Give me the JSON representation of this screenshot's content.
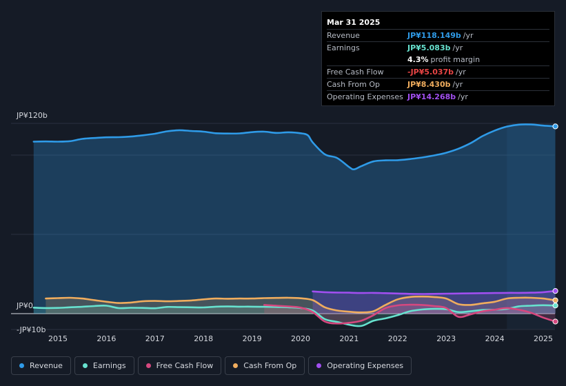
{
  "tooltip": {
    "date": "Mar 31 2025",
    "rows": [
      {
        "label": "Revenue",
        "value": "JP¥118.149b",
        "unit": "/yr",
        "color": "#2f9be8"
      },
      {
        "label": "Earnings",
        "value": "JP¥5.083b",
        "unit": "/yr",
        "color": "#67e2cf"
      },
      {
        "label": "",
        "value": "4.3%",
        "unit": "profit margin",
        "color": "#ffffff"
      },
      {
        "label": "Free Cash Flow",
        "value": "-JP¥5.037b",
        "unit": "/yr",
        "color": "#e84545"
      },
      {
        "label": "Cash From Op",
        "value": "JP¥8.430b",
        "unit": "/yr",
        "color": "#f0ad5e"
      },
      {
        "label": "Operating Expenses",
        "value": "JP¥14.268b",
        "unit": "/yr",
        "color": "#a14ff0"
      }
    ]
  },
  "legend": [
    {
      "label": "Revenue",
      "color": "#2f9be8"
    },
    {
      "label": "Earnings",
      "color": "#67e2cf"
    },
    {
      "label": "Free Cash Flow",
      "color": "#d6487f"
    },
    {
      "label": "Cash From Op",
      "color": "#f0ad5e"
    },
    {
      "label": "Operating Expenses",
      "color": "#a14ff0"
    }
  ],
  "chart_data": {
    "type": "line",
    "title": "",
    "xlabel": "",
    "ylabel": "",
    "ylim": [
      -10,
      120
    ],
    "y_tick_labels": [
      "JP¥120b",
      "JP¥0",
      "-JP¥10b"
    ],
    "x_tick_labels": [
      "2015",
      "2016",
      "2017",
      "2018",
      "2019",
      "2020",
      "2021",
      "2022",
      "2023",
      "2024",
      "2025"
    ],
    "x_range": [
      2014.4,
      2025.25
    ],
    "forecast_start": 2024.25,
    "series": [
      {
        "name": "Revenue",
        "color": "#2f9be8",
        "fill": true,
        "x": [
          2014.5,
          2014.75,
          2015.0,
          2015.25,
          2015.5,
          2015.75,
          2016.0,
          2016.25,
          2016.5,
          2016.75,
          2017.0,
          2017.25,
          2017.5,
          2017.75,
          2018.0,
          2018.25,
          2018.5,
          2018.75,
          2019.0,
          2019.25,
          2019.5,
          2019.75,
          2020.0,
          2020.15,
          2020.25,
          2020.5,
          2020.75,
          2021.0,
          2021.1,
          2021.25,
          2021.5,
          2021.75,
          2022.0,
          2022.25,
          2022.5,
          2022.75,
          2023.0,
          2023.25,
          2023.5,
          2023.75,
          2024.0,
          2024.25,
          2024.5,
          2024.75,
          2025.0,
          2025.25
        ],
        "values": [
          108.5,
          108.6,
          108.5,
          108.8,
          110.2,
          110.8,
          111.2,
          111.3,
          111.7,
          112.5,
          113.5,
          115.0,
          115.7,
          115.2,
          114.8,
          113.8,
          113.6,
          113.7,
          114.5,
          114.8,
          114.0,
          114.4,
          113.8,
          112.5,
          108.0,
          100.5,
          98.2,
          92.5,
          91.0,
          93.0,
          96.0,
          96.7,
          96.8,
          97.5,
          98.5,
          99.8,
          101.5,
          104.0,
          107.5,
          112.0,
          115.5,
          118.0,
          119.2,
          119.3,
          118.6,
          118.1
        ]
      },
      {
        "name": "Earnings",
        "color": "#67e2cf",
        "fill": true,
        "x": [
          2014.5,
          2014.75,
          2015.0,
          2015.25,
          2015.5,
          2015.75,
          2016.0,
          2016.25,
          2016.5,
          2016.75,
          2017.0,
          2017.25,
          2017.5,
          2017.75,
          2018.0,
          2018.25,
          2018.5,
          2018.75,
          2019.0,
          2019.25,
          2019.5,
          2019.75,
          2020.0,
          2020.25,
          2020.5,
          2020.75,
          2021.0,
          2021.25,
          2021.5,
          2021.75,
          2022.0,
          2022.25,
          2022.5,
          2022.75,
          2023.0,
          2023.25,
          2023.5,
          2023.75,
          2024.0,
          2024.25,
          2024.5,
          2024.75,
          2025.0,
          2025.25
        ],
        "values": [
          3.8,
          3.5,
          3.6,
          4.0,
          4.3,
          4.8,
          5.0,
          3.5,
          3.7,
          3.6,
          3.4,
          4.2,
          4.1,
          4.0,
          3.9,
          4.4,
          4.5,
          4.4,
          4.4,
          4.3,
          4.2,
          4.0,
          3.5,
          2.0,
          -3.5,
          -5.2,
          -7.0,
          -7.8,
          -4.5,
          -3.0,
          -1.0,
          1.5,
          2.6,
          3.0,
          2.8,
          1.0,
          1.5,
          2.3,
          2.5,
          3.0,
          4.6,
          5.0,
          5.3,
          5.1
        ]
      },
      {
        "name": "Free Cash Flow",
        "color": "#d6487f",
        "fill": true,
        "x": [
          2019.25,
          2019.5,
          2019.75,
          2020.0,
          2020.25,
          2020.5,
          2020.75,
          2021.0,
          2021.25,
          2021.5,
          2021.75,
          2022.0,
          2022.25,
          2022.5,
          2022.75,
          2023.0,
          2023.25,
          2023.5,
          2023.75,
          2024.0,
          2024.25,
          2024.5,
          2024.75,
          2025.0,
          2025.25
        ],
        "values": [
          5.5,
          5.0,
          4.5,
          3.8,
          1.0,
          -5.0,
          -6.2,
          -5.8,
          -4.5,
          -1.0,
          3.5,
          5.2,
          5.6,
          5.5,
          4.8,
          3.5,
          -2.0,
          -0.5,
          1.5,
          2.5,
          3.5,
          2.5,
          0.5,
          -2.5,
          -5.0
        ]
      },
      {
        "name": "Cash From Op",
        "color": "#f0ad5e",
        "fill": true,
        "x": [
          2014.75,
          2015.0,
          2015.25,
          2015.5,
          2015.75,
          2016.0,
          2016.25,
          2016.5,
          2016.75,
          2017.0,
          2017.25,
          2017.5,
          2017.75,
          2018.0,
          2018.25,
          2018.5,
          2018.75,
          2019.0,
          2019.25,
          2019.5,
          2019.75,
          2020.0,
          2020.25,
          2020.5,
          2020.75,
          2021.0,
          2021.25,
          2021.5,
          2021.75,
          2022.0,
          2022.25,
          2022.5,
          2022.75,
          2023.0,
          2023.25,
          2023.5,
          2023.75,
          2024.0,
          2024.25,
          2024.5,
          2024.75,
          2025.0,
          2025.25
        ],
        "values": [
          9.5,
          9.8,
          10.0,
          9.5,
          8.5,
          7.5,
          6.7,
          7.0,
          7.8,
          8.0,
          7.8,
          8.0,
          8.3,
          9.0,
          9.5,
          9.4,
          9.5,
          9.5,
          9.8,
          9.9,
          10.0,
          9.7,
          8.5,
          4.0,
          2.0,
          1.2,
          0.8,
          1.5,
          5.5,
          9.0,
          10.5,
          10.8,
          10.5,
          9.5,
          6.0,
          5.5,
          6.5,
          7.5,
          9.5,
          10.0,
          10.0,
          9.5,
          8.4
        ]
      },
      {
        "name": "Operating Expenses",
        "color": "#a14ff0",
        "fill": true,
        "x": [
          2020.25,
          2020.5,
          2020.75,
          2021.0,
          2021.25,
          2021.5,
          2021.75,
          2022.0,
          2022.25,
          2022.5,
          2022.75,
          2023.0,
          2023.25,
          2023.5,
          2023.75,
          2024.0,
          2024.25,
          2024.5,
          2024.75,
          2025.0,
          2025.25
        ],
        "values": [
          14.0,
          13.5,
          13.3,
          13.2,
          13.0,
          13.1,
          12.9,
          12.7,
          12.5,
          12.4,
          12.5,
          12.6,
          12.7,
          12.8,
          12.9,
          13.0,
          13.1,
          13.1,
          13.2,
          13.5,
          14.3
        ]
      }
    ]
  }
}
